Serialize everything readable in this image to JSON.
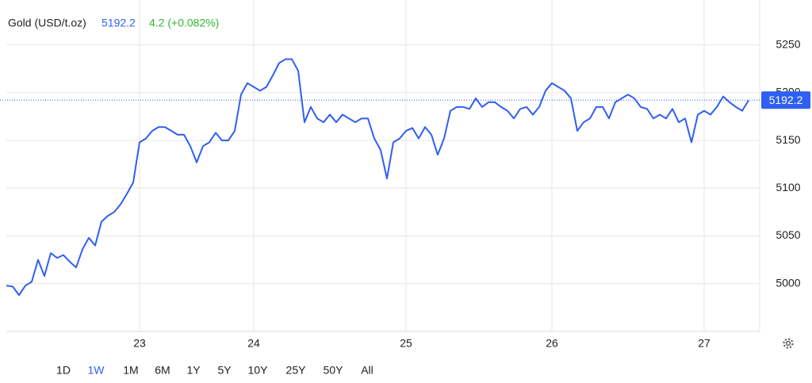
{
  "chart_data": {
    "type": "line",
    "title": "Gold (USD/t.oz)",
    "last_price": 5192.2,
    "change": "4.2 (+0.082%)",
    "color": "#2f5ff0",
    "categories": [
      null,
      null,
      null,
      null,
      null,
      null,
      null,
      null,
      null,
      null,
      null,
      null,
      null,
      null,
      null,
      null,
      null,
      null,
      null,
      null,
      null,
      "23",
      null,
      null,
      null,
      null,
      null,
      null,
      null,
      null,
      null,
      null,
      null,
      null,
      null,
      null,
      null,
      null,
      null,
      "24",
      null,
      null,
      null,
      null,
      null,
      null,
      null,
      null,
      null,
      null,
      null,
      null,
      null,
      null,
      null,
      null,
      null,
      null,
      null,
      null,
      null,
      null,
      null,
      "25",
      null,
      null,
      null,
      null,
      null,
      null,
      null,
      null,
      null,
      null,
      null,
      null,
      null,
      null,
      null,
      null,
      null,
      null,
      null,
      null,
      null,
      null,
      "26",
      null,
      null,
      null,
      null,
      null,
      null,
      null,
      null,
      null,
      null,
      null,
      null,
      null,
      null,
      null,
      null,
      null,
      null,
      null,
      null,
      null,
      null,
      null,
      "27",
      null,
      null,
      null,
      null,
      null,
      null,
      null
    ],
    "values": [
      4998,
      4997,
      4988,
      4998,
      5002,
      5025,
      5008,
      5032,
      5027,
      5030,
      5023,
      5017,
      5036,
      5048,
      5040,
      5065,
      5071,
      5075,
      5083,
      5094,
      5106,
      5148,
      5152,
      5160,
      5164,
      5164,
      5160,
      5156,
      5156,
      5144,
      5127,
      5144,
      5148,
      5158,
      5150,
      5150,
      5160,
      5198,
      5210,
      5206,
      5202,
      5206,
      5218,
      5231,
      5235,
      5235,
      5223,
      5169,
      5185,
      5173,
      5169,
      5177,
      5169,
      5177,
      5173,
      5169,
      5173,
      5173,
      5152,
      5140,
      5110,
      5148,
      5152,
      5160,
      5163,
      5152,
      5164,
      5156,
      5135,
      5152,
      5181,
      5185,
      5185,
      5183,
      5194,
      5185,
      5190,
      5190,
      5185,
      5181,
      5173,
      5183,
      5185,
      5177,
      5185,
      5202,
      5210,
      5206,
      5202,
      5194,
      5160,
      5169,
      5173,
      5185,
      5185,
      5173,
      5190,
      5194,
      5198,
      5194,
      5185,
      5183,
      5173,
      5177,
      5173,
      5183,
      5169,
      5173,
      5148,
      5177,
      5181,
      5177,
      5185,
      5196,
      5190,
      5185,
      5181,
      5192
    ],
    "ylim": [
      4950,
      5297
    ],
    "yticks": [
      5000,
      5050,
      5100,
      5150,
      5200,
      5250
    ],
    "grid": true,
    "ranges": [
      "1D",
      "1W",
      "1M",
      "6M",
      "1Y",
      "5Y",
      "10Y",
      "25Y",
      "50Y",
      "All"
    ],
    "selected_range": "1W"
  }
}
